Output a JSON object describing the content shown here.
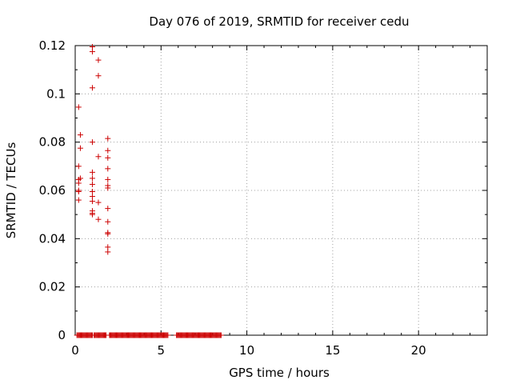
{
  "chart_data": {
    "type": "scatter",
    "title": "Day 076 of 2019, SRMTID for receiver cedu",
    "xlabel": "GPS time / hours",
    "ylabel": "SRMTID / TECUs",
    "xlim": [
      0,
      24
    ],
    "ylim": [
      0,
      0.12
    ],
    "xticks": [
      0,
      5,
      10,
      15,
      20
    ],
    "yticks": [
      0,
      0.02,
      0.04,
      0.06,
      0.08,
      0.1,
      0.12
    ],
    "xtick_labels": [
      "0",
      "5",
      "10",
      "15",
      "20"
    ],
    "ytick_labels": [
      "0",
      "0.02",
      "0.04",
      "0.06",
      "0.08",
      "0.1",
      "0.12"
    ],
    "grid": true,
    "marker": "+",
    "color": "#cc0000",
    "points": [
      {
        "x": 0.2,
        "y": 0.0945
      },
      {
        "x": 0.2,
        "y": 0.07
      },
      {
        "x": 0.2,
        "y": 0.0645
      },
      {
        "x": 0.2,
        "y": 0.063
      },
      {
        "x": 0.2,
        "y": 0.06
      },
      {
        "x": 0.2,
        "y": 0.0595
      },
      {
        "x": 0.2,
        "y": 0.056
      },
      {
        "x": 0.3,
        "y": 0.083
      },
      {
        "x": 0.3,
        "y": 0.0775
      },
      {
        "x": 0.3,
        "y": 0.065
      },
      {
        "x": 1.0,
        "y": 0.1195
      },
      {
        "x": 1.0,
        "y": 0.1175
      },
      {
        "x": 1.0,
        "y": 0.1025
      },
      {
        "x": 1.0,
        "y": 0.08
      },
      {
        "x": 1.0,
        "y": 0.0675
      },
      {
        "x": 1.0,
        "y": 0.065
      },
      {
        "x": 1.0,
        "y": 0.0625
      },
      {
        "x": 1.0,
        "y": 0.0595
      },
      {
        "x": 1.0,
        "y": 0.0575
      },
      {
        "x": 1.0,
        "y": 0.0555
      },
      {
        "x": 1.0,
        "y": 0.0515
      },
      {
        "x": 1.0,
        "y": 0.0505
      },
      {
        "x": 1.0,
        "y": 0.05
      },
      {
        "x": 1.35,
        "y": 0.114
      },
      {
        "x": 1.35,
        "y": 0.1075
      },
      {
        "x": 1.35,
        "y": 0.074
      },
      {
        "x": 1.35,
        "y": 0.055
      },
      {
        "x": 1.35,
        "y": 0.048
      },
      {
        "x": 1.9,
        "y": 0.0815
      },
      {
        "x": 1.9,
        "y": 0.0765
      },
      {
        "x": 1.9,
        "y": 0.0735
      },
      {
        "x": 1.9,
        "y": 0.069
      },
      {
        "x": 1.9,
        "y": 0.0645
      },
      {
        "x": 1.9,
        "y": 0.062
      },
      {
        "x": 1.9,
        "y": 0.061
      },
      {
        "x": 1.9,
        "y": 0.0525
      },
      {
        "x": 1.9,
        "y": 0.047
      },
      {
        "x": 1.9,
        "y": 0.0425
      },
      {
        "x": 1.9,
        "y": 0.042
      },
      {
        "x": 1.9,
        "y": 0.0365
      },
      {
        "x": 1.9,
        "y": 0.0345
      }
    ],
    "zero_runs": [
      {
        "x_start": 0.1,
        "x_end": 1.0,
        "y": 0
      },
      {
        "x_start": 1.1,
        "x_end": 1.8,
        "y": 0
      },
      {
        "x_start": 2.0,
        "x_end": 5.4,
        "y": 0
      },
      {
        "x_start": 5.9,
        "x_end": 8.5,
        "y": 0
      }
    ]
  }
}
